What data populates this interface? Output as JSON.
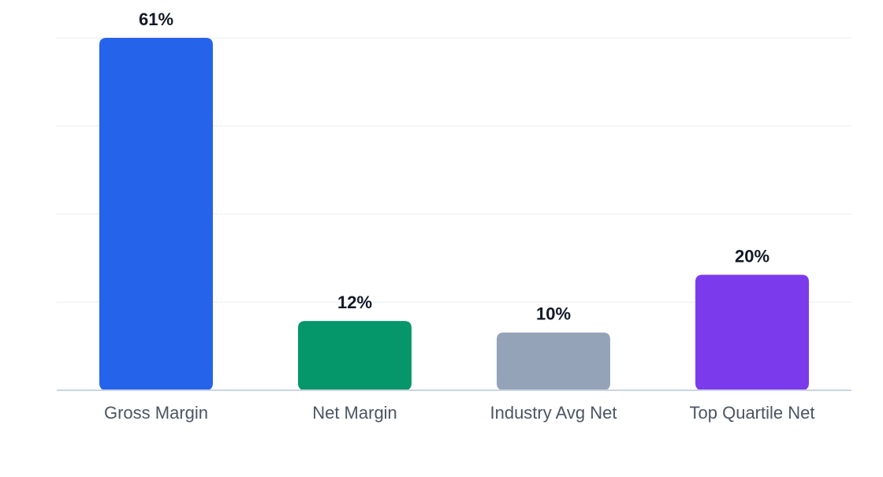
{
  "chart_data": {
    "type": "bar",
    "categories": [
      "Gross Margin",
      "Net Margin",
      "Industry Avg Net",
      "Top Quartile Net"
    ],
    "values": [
      61,
      12,
      10,
      20
    ],
    "value_labels": [
      "61%",
      "12%",
      "10%",
      "20%"
    ],
    "colors": [
      "#2563eb",
      "#059669",
      "#94a3b8",
      "#7c3aed"
    ],
    "title": "",
    "xlabel": "",
    "ylabel": "",
    "ylim": [
      0,
      61
    ],
    "grid": true,
    "legend": "none"
  }
}
